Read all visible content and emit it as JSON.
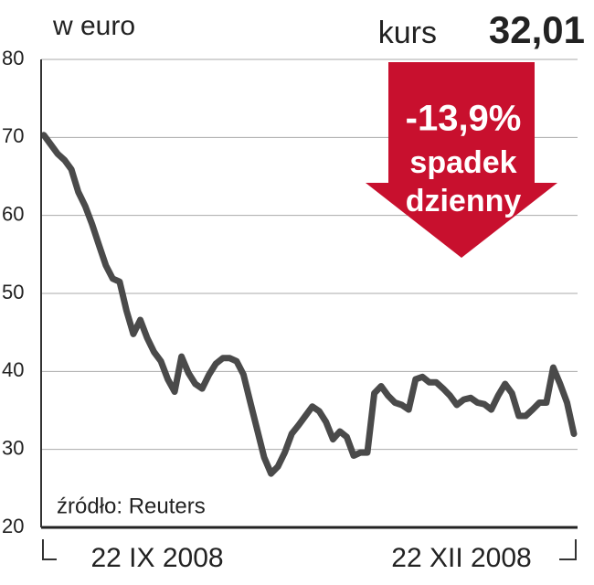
{
  "chart_data": {
    "type": "line",
    "unit_label": "w euro",
    "price_label": "kurs",
    "price_value": "32,01",
    "change": "-13,9%",
    "change_text": [
      "spadek",
      "dzienny"
    ],
    "source": "źródło: Reuters",
    "x_labels": [
      "22 IX 2008",
      "22 XII 2008"
    ],
    "color": "#4a4a4a",
    "arrow_color": "#c8102e",
    "ylim": [
      20,
      80
    ],
    "yticks": [
      20,
      30,
      40,
      50,
      60,
      70,
      80
    ],
    "grid": true,
    "values": [
      70.3,
      69.1,
      67.9,
      67.1,
      65.9,
      63,
      61.2,
      58.9,
      56.2,
      53.6,
      51.9,
      51.5,
      47.8,
      44.8,
      46.6,
      44.3,
      42.5,
      41.3,
      39,
      37.4,
      41.9,
      39.8,
      38.4,
      37.8,
      39.6,
      41,
      41.7,
      41.7,
      41.3,
      39.6,
      36,
      32.5,
      29,
      26.9,
      27.8,
      29.6,
      32,
      33.1,
      34.3,
      35.5,
      34.9,
      33.5,
      31.3,
      32.3,
      31.6,
      29.2,
      29.6,
      29.6,
      37.2,
      38.1,
      36.9,
      36,
      35.7,
      35.1,
      39,
      39.3,
      38.6,
      38.6,
      37.8,
      36.9,
      35.7,
      36.4,
      36.6,
      36,
      35.8,
      35.1,
      36.9,
      38.4,
      37.2,
      34.3,
      34.3,
      35.1,
      36,
      36,
      40.5,
      38.4,
      36,
      32
    ]
  }
}
